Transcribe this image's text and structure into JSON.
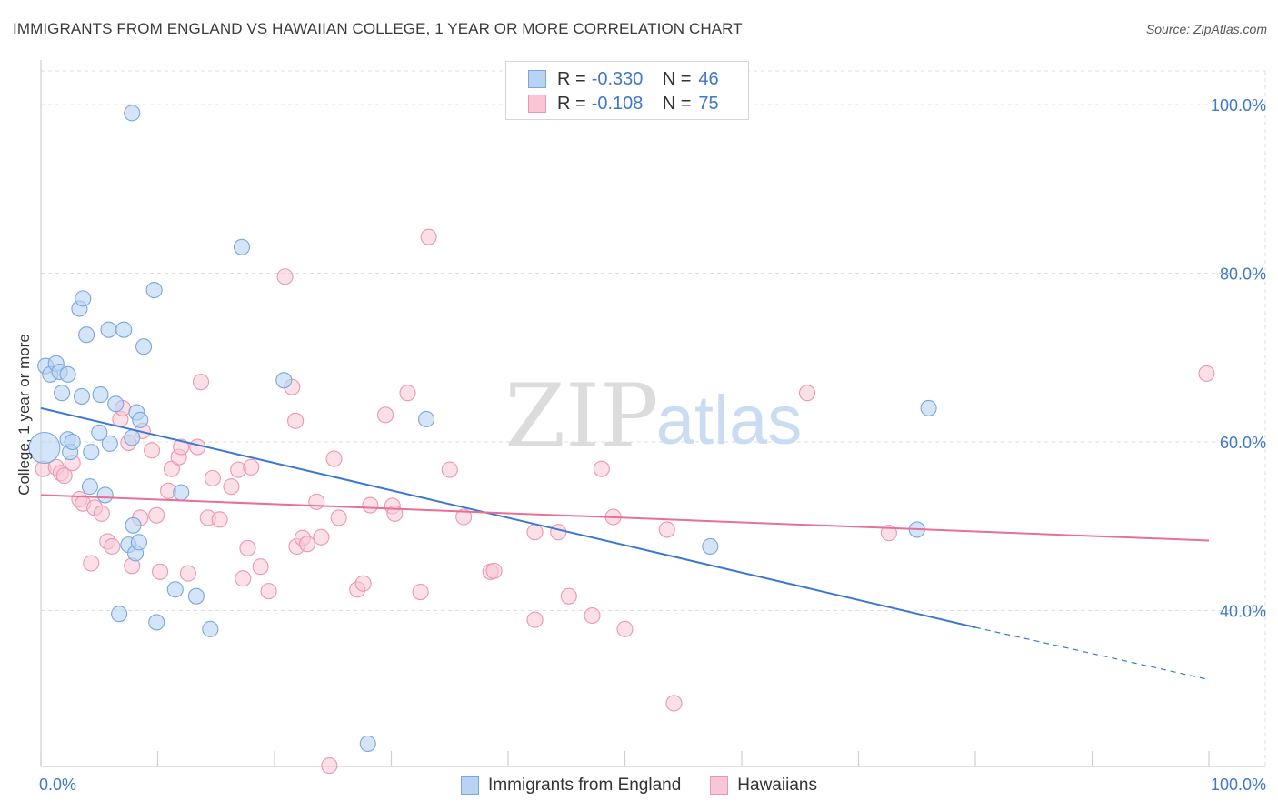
{
  "title": "IMMIGRANTS FROM ENGLAND VS HAWAIIAN COLLEGE, 1 YEAR OR MORE CORRELATION CHART",
  "source": "Source: ZipAtlas.com",
  "watermark": {
    "zip": "ZIP",
    "atlas": "atlas"
  },
  "colors": {
    "blue_fill": "#b8d3f3",
    "blue_stroke": "#7aa6dd",
    "blue_line": "#3a78d3",
    "pink_fill": "#f8c6d4",
    "pink_stroke": "#eb97b1",
    "pink_line": "#e86f98",
    "axis_text": "#3f77c9"
  },
  "legend_top": {
    "rows": [
      {
        "r_label": "R =",
        "r_value": "-0.330",
        "n_label": "N =",
        "n_value": "46"
      },
      {
        "r_label": "R =",
        "r_value": "-0.108",
        "n_label": "N =",
        "n_value": "75"
      }
    ]
  },
  "legend_bottom": {
    "series1": "Immigrants from England",
    "series2": "Hawaiians"
  },
  "chart_data": {
    "type": "scatter",
    "title": "IMMIGRANTS FROM ENGLAND VS HAWAIIAN COLLEGE, 1 YEAR OR MORE CORRELATION CHART",
    "xlabel": "",
    "ylabel": "College, 1 year or more",
    "xlim": [
      0,
      100
    ],
    "ylim": [
      21.5,
      104
    ],
    "x_tick_labels": [
      "0.0%",
      "100.0%"
    ],
    "y_ticks": [
      40,
      60,
      80,
      100
    ],
    "y_tick_labels": [
      "40.0%",
      "60.0%",
      "80.0%",
      "100.0%"
    ],
    "grid": true,
    "series": [
      {
        "name": "Immigrants from England",
        "r": -0.33,
        "n": 46,
        "trend": {
          "x0": 0,
          "y0": 64.0,
          "x1": 80,
          "y1": 38.0,
          "dash_to_x": 100,
          "dash_to_y": 31.8
        },
        "points": [
          [
            0.3,
            59.3
          ],
          [
            0.4,
            69.0
          ],
          [
            0.8,
            68.0
          ],
          [
            1.3,
            69.3
          ],
          [
            1.6,
            68.3
          ],
          [
            1.8,
            65.8
          ],
          [
            2.3,
            68.0
          ],
          [
            2.3,
            60.3
          ],
          [
            2.5,
            58.8
          ],
          [
            2.7,
            60.0
          ],
          [
            3.3,
            75.8
          ],
          [
            3.5,
            65.4
          ],
          [
            3.6,
            77.0
          ],
          [
            3.9,
            72.7
          ],
          [
            4.2,
            54.7
          ],
          [
            4.3,
            58.8
          ],
          [
            5.0,
            61.1
          ],
          [
            5.1,
            65.6
          ],
          [
            5.5,
            53.7
          ],
          [
            5.8,
            73.3
          ],
          [
            5.9,
            59.8
          ],
          [
            6.4,
            64.5
          ],
          [
            6.7,
            39.6
          ],
          [
            7.1,
            73.3
          ],
          [
            7.5,
            47.8
          ],
          [
            7.8,
            60.5
          ],
          [
            7.8,
            99.0
          ],
          [
            7.9,
            50.1
          ],
          [
            8.1,
            46.8
          ],
          [
            8.2,
            63.5
          ],
          [
            8.4,
            48.1
          ],
          [
            8.5,
            62.6
          ],
          [
            8.8,
            71.3
          ],
          [
            9.7,
            78.0
          ],
          [
            9.9,
            38.6
          ],
          [
            11.5,
            42.5
          ],
          [
            12.0,
            54.0
          ],
          [
            13.3,
            41.7
          ],
          [
            14.5,
            37.8
          ],
          [
            17.2,
            83.1
          ],
          [
            20.8,
            67.3
          ],
          [
            28.0,
            24.2
          ],
          [
            33.0,
            62.7
          ],
          [
            57.3,
            47.6
          ],
          [
            75.0,
            49.6
          ],
          [
            76.0,
            64.0
          ]
        ]
      },
      {
        "name": "Hawaiians",
        "r": -0.108,
        "n": 75,
        "trend": {
          "x0": 0,
          "y0": 53.7,
          "x1": 100,
          "y1": 48.3
        },
        "points": [
          [
            0.2,
            56.8
          ],
          [
            1.3,
            57.0
          ],
          [
            1.7,
            56.3
          ],
          [
            2.0,
            56.0
          ],
          [
            2.7,
            57.5
          ],
          [
            3.3,
            53.2
          ],
          [
            3.6,
            52.7
          ],
          [
            4.3,
            45.6
          ],
          [
            4.6,
            52.2
          ],
          [
            5.2,
            51.5
          ],
          [
            5.7,
            48.2
          ],
          [
            6.1,
            47.6
          ],
          [
            6.8,
            62.7
          ],
          [
            7.0,
            64.0
          ],
          [
            7.5,
            59.9
          ],
          [
            7.8,
            45.3
          ],
          [
            8.5,
            51.0
          ],
          [
            8.7,
            61.3
          ],
          [
            9.5,
            59.0
          ],
          [
            9.9,
            51.3
          ],
          [
            10.2,
            44.6
          ],
          [
            10.9,
            54.2
          ],
          [
            11.2,
            56.8
          ],
          [
            11.8,
            58.2
          ],
          [
            12.0,
            59.4
          ],
          [
            12.6,
            44.4
          ],
          [
            13.4,
            59.4
          ],
          [
            13.7,
            67.1
          ],
          [
            14.3,
            51.0
          ],
          [
            14.7,
            55.7
          ],
          [
            15.3,
            50.8
          ],
          [
            16.3,
            54.7
          ],
          [
            16.9,
            56.7
          ],
          [
            17.3,
            43.8
          ],
          [
            17.7,
            47.4
          ],
          [
            18.0,
            57.0
          ],
          [
            18.8,
            45.2
          ],
          [
            19.5,
            42.3
          ],
          [
            20.9,
            79.6
          ],
          [
            21.5,
            66.5
          ],
          [
            21.8,
            62.5
          ],
          [
            21.9,
            47.6
          ],
          [
            22.4,
            48.6
          ],
          [
            22.8,
            47.9
          ],
          [
            23.6,
            52.9
          ],
          [
            24.0,
            48.7
          ],
          [
            24.7,
            21.6
          ],
          [
            25.1,
            58.0
          ],
          [
            25.5,
            51.0
          ],
          [
            27.1,
            42.5
          ],
          [
            27.6,
            43.2
          ],
          [
            28.2,
            52.5
          ],
          [
            29.5,
            63.2
          ],
          [
            30.1,
            52.4
          ],
          [
            30.3,
            51.5
          ],
          [
            31.4,
            65.8
          ],
          [
            32.5,
            42.2
          ],
          [
            33.2,
            84.3
          ],
          [
            35.0,
            56.7
          ],
          [
            36.2,
            51.1
          ],
          [
            38.5,
            44.6
          ],
          [
            38.8,
            44.7
          ],
          [
            42.3,
            38.9
          ],
          [
            42.3,
            49.3
          ],
          [
            44.3,
            49.3
          ],
          [
            45.2,
            41.7
          ],
          [
            47.2,
            39.4
          ],
          [
            48.0,
            56.8
          ],
          [
            49.0,
            51.1
          ],
          [
            50.0,
            37.8
          ],
          [
            53.6,
            49.6
          ],
          [
            54.2,
            29.0
          ],
          [
            65.6,
            65.8
          ],
          [
            72.6,
            49.2
          ],
          [
            99.8,
            68.1
          ]
        ]
      }
    ]
  }
}
